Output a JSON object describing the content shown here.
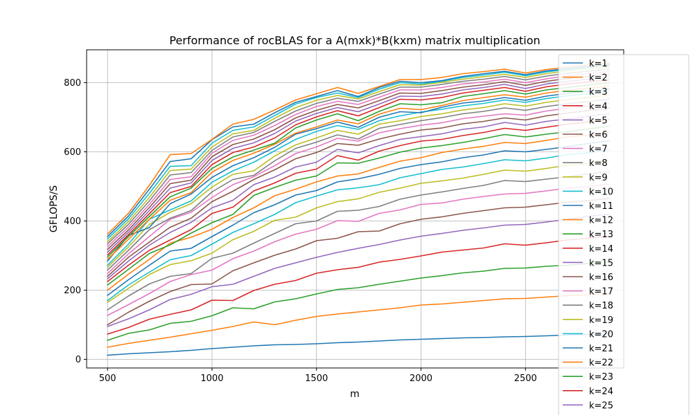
{
  "chart_data": {
    "type": "line",
    "title": "Performance of rocBLAS for a A(mxk)*B(kxm) matrix multiplication",
    "xlabel": "m",
    "ylabel": "GFLOPS/S",
    "xlim": [
      400,
      2970
    ],
    "ylim": [
      -25,
      895
    ],
    "xticks": [
      500,
      1000,
      1500,
      2000,
      2500
    ],
    "yticks": [
      0,
      200,
      400,
      600,
      800
    ],
    "grid": true,
    "legend_position": "right",
    "x": [
      500,
      600,
      700,
      800,
      900,
      1000,
      1100,
      1200,
      1300,
      1400,
      1500,
      1600,
      1700,
      1800,
      1900,
      2000,
      2100,
      2200,
      2300,
      2400,
      2500,
      2600,
      2700,
      2800,
      2900
    ],
    "series": [
      {
        "name": "k=1",
        "color": "#1f77b4",
        "values": [
          12,
          16,
          19,
          22,
          26,
          31,
          35,
          39,
          42,
          43,
          45,
          48,
          50,
          53,
          56,
          58,
          60,
          62,
          63,
          65,
          66,
          68,
          70,
          72,
          74
        ]
      },
      {
        "name": "k=2",
        "color": "#ff7f0e",
        "values": [
          35,
          46,
          55,
          64,
          74,
          84,
          95,
          108,
          100,
          113,
          124,
          131,
          137,
          143,
          149,
          157,
          160,
          165,
          170,
          175,
          176,
          180,
          184,
          187,
          190
        ]
      },
      {
        "name": "k=3",
        "color": "#2ca02c",
        "values": [
          55,
          75,
          85,
          104,
          110,
          126,
          149,
          146,
          166,
          175,
          189,
          202,
          207,
          217,
          226,
          235,
          242,
          250,
          255,
          263,
          264,
          269,
          272,
          277,
          281
        ]
      },
      {
        "name": "k=4",
        "color": "#d62728",
        "values": [
          73,
          92,
          116,
          130,
          143,
          171,
          170,
          199,
          217,
          228,
          249,
          259,
          266,
          281,
          289,
          299,
          310,
          316,
          322,
          334,
          330,
          337,
          345,
          350,
          356
        ]
      },
      {
        "name": "k=5",
        "color": "#9467bd",
        "values": [
          95,
          117,
          143,
          173,
          188,
          210,
          217,
          240,
          263,
          279,
          295,
          309,
          321,
          332,
          345,
          356,
          364,
          373,
          380,
          388,
          390,
          397,
          405,
          413,
          420
        ]
      },
      {
        "name": "k=6",
        "color": "#8c564b",
        "values": [
          100,
          136,
          168,
          196,
          216,
          218,
          256,
          279,
          301,
          319,
          343,
          350,
          369,
          371,
          392,
          405,
          412,
          422,
          430,
          438,
          440,
          447,
          454,
          459,
          465
        ]
      },
      {
        "name": "k=7",
        "color": "#e377c2",
        "values": [
          127,
          158,
          190,
          225,
          245,
          258,
          291,
          313,
          340,
          362,
          376,
          401,
          399,
          422,
          432,
          448,
          452,
          463,
          471,
          478,
          480,
          487,
          495,
          500,
          507
        ]
      },
      {
        "name": "k=8",
        "color": "#7f7f7f",
        "values": [
          143,
          183,
          218,
          240,
          248,
          292,
          307,
          336,
          364,
          392,
          400,
          428,
          431,
          442,
          463,
          475,
          484,
          494,
          503,
          517,
          514,
          521,
          528,
          536,
          543
        ]
      },
      {
        "name": "k=9",
        "color": "#bcbd22",
        "values": [
          165,
          205,
          245,
          274,
          285,
          307,
          346,
          370,
          402,
          411,
          438,
          456,
          464,
          483,
          495,
          509,
          516,
          524,
          535,
          547,
          544,
          552,
          561,
          566,
          575
        ]
      },
      {
        "name": "k=10",
        "color": "#17becf",
        "values": [
          170,
          215,
          252,
          288,
          300,
          333,
          367,
          392,
          419,
          453,
          472,
          490,
          496,
          505,
          525,
          537,
          549,
          556,
          566,
          577,
          574,
          582,
          592,
          597,
          606
        ]
      },
      {
        "name": "k=11",
        "color": "#1f77b4",
        "values": [
          185,
          230,
          272,
          313,
          321,
          355,
          388,
          424,
          447,
          475,
          488,
          513,
          522,
          535,
          552,
          563,
          571,
          583,
          591,
          603,
          600,
          607,
          615,
          624,
          632
        ]
      },
      {
        "name": "k=12",
        "color": "#ff7f0e",
        "values": [
          200,
          246,
          289,
          336,
          353,
          376,
          410,
          438,
          473,
          492,
          513,
          530,
          536,
          555,
          573,
          583,
          598,
          608,
          616,
          627,
          624,
          633,
          643,
          648,
          656
        ]
      },
      {
        "name": "k=13",
        "color": "#2ca02c",
        "values": [
          215,
          260,
          306,
          331,
          365,
          395,
          419,
          474,
          497,
          518,
          530,
          568,
          567,
          582,
          599,
          611,
          618,
          627,
          638,
          650,
          643,
          651,
          658,
          666,
          674
        ]
      },
      {
        "name": "k=14",
        "color": "#d62728",
        "values": [
          225,
          272,
          315,
          345,
          375,
          422,
          440,
          487,
          510,
          538,
          550,
          589,
          576,
          602,
          618,
          631,
          636,
          647,
          656,
          668,
          662,
          671,
          680,
          686,
          693
        ]
      },
      {
        "name": "k=15",
        "color": "#9467bd",
        "values": [
          233,
          284,
          330,
          367,
          396,
          438,
          460,
          505,
          527,
          556,
          570,
          607,
          597,
          618,
          636,
          644,
          652,
          665,
          672,
          685,
          677,
          688,
          695,
          703,
          710
        ]
      },
      {
        "name": "k=16",
        "color": "#8c564b",
        "values": [
          240,
          295,
          339,
          382,
          408,
          456,
          486,
          520,
          548,
          580,
          598,
          624,
          619,
          637,
          651,
          663,
          669,
          681,
          688,
          698,
          692,
          704,
          712,
          719,
          726
        ]
      },
      {
        "name": "k=17",
        "color": "#e377c2",
        "values": [
          248,
          305,
          355,
          405,
          425,
          468,
          505,
          528,
          560,
          595,
          614,
          639,
          631,
          655,
          667,
          677,
          684,
          696,
          703,
          710,
          706,
          718,
          726,
          733,
          740
        ]
      },
      {
        "name": "k=18",
        "color": "#7f7f7f",
        "values": [
          258,
          315,
          375,
          408,
          430,
          484,
          520,
          532,
          574,
          610,
          628,
          649,
          637,
          668,
          679,
          690,
          699,
          710,
          717,
          727,
          720,
          731,
          739,
          745,
          752
        ]
      },
      {
        "name": "k=19",
        "color": "#bcbd22",
        "values": [
          266,
          325,
          390,
          425,
          450,
          498,
          535,
          545,
          588,
          620,
          640,
          662,
          651,
          680,
          690,
          702,
          710,
          721,
          728,
          739,
          732,
          743,
          751,
          757,
          764
        ]
      },
      {
        "name": "k=20",
        "color": "#17becf",
        "values": [
          272,
          333,
          405,
          432,
          458,
          512,
          545,
          570,
          603,
          636,
          659,
          676,
          665,
          690,
          704,
          715,
          723,
          733,
          740,
          750,
          743,
          754,
          762,
          768,
          775
        ]
      },
      {
        "name": "k=21",
        "color": "#1f77b4",
        "values": [
          284,
          358,
          381,
          450,
          478,
          526,
          560,
          583,
          613,
          651,
          667,
          686,
          671,
          700,
          716,
          713,
          729,
          741,
          747,
          757,
          749,
          761,
          769,
          775,
          782
        ]
      },
      {
        "name": "k=22",
        "color": "#ff7f0e",
        "values": [
          289,
          347,
          405,
          460,
          482,
          541,
          575,
          596,
          622,
          654,
          672,
          692,
          681,
          709,
          726,
          722,
          734,
          748,
          757,
          765,
          758,
          770,
          778,
          784,
          791
        ]
      },
      {
        "name": "k=23",
        "color": "#2ca02c",
        "values": [
          296,
          355,
          413,
          470,
          495,
          552,
          585,
          605,
          625,
          669,
          692,
          710,
          690,
          717,
          739,
          736,
          742,
          760,
          768,
          777,
          767,
          779,
          786,
          793,
          800
        ]
      },
      {
        "name": "k=24",
        "color": "#d62728",
        "values": [
          302,
          360,
          421,
          482,
          500,
          563,
          598,
          614,
          640,
          678,
          701,
          719,
          704,
          728,
          752,
          750,
          757,
          770,
          778,
          786,
          775,
          788,
          796,
          802,
          808
        ]
      },
      {
        "name": "k=25",
        "color": "#9467bd",
        "values": [
          310,
          367,
          430,
          495,
          510,
          575,
          610,
          626,
          653,
          689,
          711,
          728,
          716,
          738,
          761,
          760,
          767,
          779,
          786,
          795,
          783,
          796,
          804,
          810,
          816
        ]
      },
      {
        "name": "",
        "color": "#8c564b",
        "values": [
          318,
          374,
          439,
          508,
          518,
          586,
          621,
          637,
          664,
          698,
          720,
          737,
          727,
          748,
          770,
          769,
          777,
          787,
          794,
          803,
          792,
          804,
          812,
          818,
          824
        ]
      },
      {
        "name": "",
        "color": "#e377c2",
        "values": [
          326,
          382,
          448,
          520,
          528,
          596,
          633,
          648,
          676,
          708,
          731,
          746,
          737,
          758,
          779,
          779,
          786,
          796,
          802,
          810,
          800,
          811,
          820,
          826,
          832
        ]
      },
      {
        "name": "",
        "color": "#7f7f7f",
        "values": [
          334,
          390,
          458,
          533,
          540,
          604,
          643,
          656,
          688,
          718,
          740,
          755,
          746,
          767,
          787,
          787,
          795,
          804,
          810,
          818,
          808,
          819,
          827,
          833,
          839
        ]
      },
      {
        "name": "",
        "color": "#bcbd22",
        "values": [
          340,
          398,
          468,
          546,
          550,
          614,
          652,
          662,
          697,
          728,
          749,
          763,
          753,
          774,
          794,
          793,
          801,
          810,
          817,
          824,
          815,
          826,
          834,
          840,
          846
        ]
      },
      {
        "name": "",
        "color": "#17becf",
        "values": [
          348,
          406,
          480,
          558,
          560,
          625,
          662,
          672,
          705,
          738,
          757,
          770,
          757,
          781,
          800,
          796,
          804,
          815,
          822,
          830,
          820,
          831,
          838,
          844,
          850
        ]
      },
      {
        "name": "",
        "color": "#1f77b4",
        "values": [
          355,
          414,
          492,
          572,
          580,
          635,
          672,
          680,
          713,
          743,
          760,
          777,
          760,
          786,
          804,
          800,
          806,
          818,
          826,
          833,
          823,
          834,
          841,
          847,
          853
        ]
      },
      {
        "name": "",
        "color": "#ff7f0e",
        "values": [
          362,
          422,
          503,
          592,
          595,
          636,
          680,
          694,
          721,
          750,
          768,
          786,
          769,
          789,
          809,
          809,
          815,
          826,
          832,
          839,
          828,
          838,
          845,
          851,
          856
        ]
      }
    ],
    "legend_entries": [
      "k=1",
      "k=2",
      "k=3",
      "k=4",
      "k=5",
      "k=6",
      "k=7",
      "k=8",
      "k=9",
      "k=10",
      "k=11",
      "k=12",
      "k=13",
      "k=14",
      "k=15",
      "k=16",
      "k=17",
      "k=18",
      "k=19",
      "k=20",
      "k=21",
      "k=22",
      "k=23",
      "k=24",
      "k=25"
    ]
  }
}
